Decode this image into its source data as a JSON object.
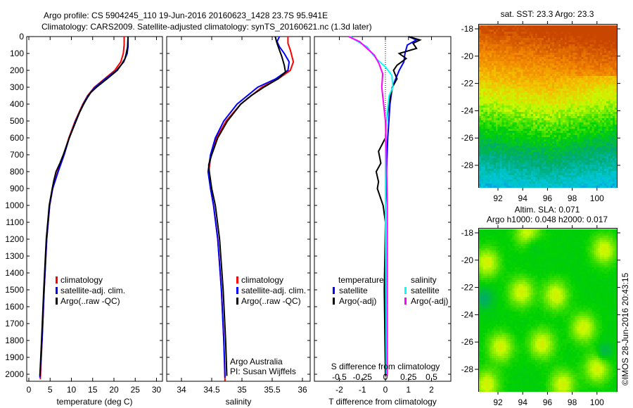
{
  "title_line1": "Argo profile: CS 5904245_110 19-Jun-2016 20160623_1428 23.7S 95.941E",
  "title_line2": "Climatology: CARS2009. Satellite-adjusted climatology: synTS_20160621.nc (1.3d later)",
  "colors": {
    "climatology": "#ff0000",
    "satellite": "#0000ff",
    "argo": "#000000",
    "sal_satellite": "#00ffff",
    "sal_argo": "#ff00ff"
  },
  "chart_data": [
    {
      "type": "line",
      "name": "temperature",
      "xlabel": "temperature (deg C)",
      "ylabel": "depth",
      "xlim": [
        -1,
        31
      ],
      "ylim": [
        2042,
        0
      ],
      "xticks": [
        "0",
        "5",
        "10",
        "15",
        "20",
        "25",
        "30"
      ],
      "yticks": [
        "0",
        "100",
        "200",
        "300",
        "400",
        "500",
        "600",
        "700",
        "800",
        "900",
        "1000",
        "1100",
        "1200",
        "1300",
        "1400",
        "1500",
        "1600",
        "1700",
        "1800",
        "1900",
        "2000"
      ],
      "legend": [
        "climatology",
        "satellite-adj. clim.",
        "Argo(..raw -QC)"
      ],
      "series": [
        {
          "name": "climatology",
          "color": "#ff0000",
          "points": [
            [
              0,
              22.4
            ],
            [
              50,
              22.4
            ],
            [
              100,
              22.2
            ],
            [
              150,
              21.6
            ],
            [
              200,
              20.2
            ],
            [
              250,
              17.8
            ],
            [
              300,
              15.4
            ],
            [
              350,
              13.8
            ],
            [
              400,
              12.7
            ],
            [
              500,
              10.9
            ],
            [
              600,
              9.4
            ],
            [
              700,
              8.2
            ],
            [
              800,
              6.8
            ],
            [
              900,
              5.6
            ],
            [
              1000,
              4.9
            ],
            [
              1200,
              4.2
            ],
            [
              1500,
              3.6
            ],
            [
              1800,
              3.1
            ],
            [
              2030,
              2.7
            ]
          ]
        },
        {
          "name": "satellite-adj. clim.",
          "color": "#0000ff",
          "points": [
            [
              0,
              23.3
            ],
            [
              60,
              23.3
            ],
            [
              100,
              23.1
            ],
            [
              150,
              22.3
            ],
            [
              200,
              20.6
            ],
            [
              250,
              18.0
            ],
            [
              300,
              15.6
            ],
            [
              350,
              13.9
            ],
            [
              400,
              12.8
            ],
            [
              500,
              11.0
            ],
            [
              600,
              9.5
            ],
            [
              700,
              8.3
            ],
            [
              800,
              6.9
            ],
            [
              900,
              5.6
            ],
            [
              1000,
              4.9
            ],
            [
              1200,
              4.2
            ],
            [
              1500,
              3.6
            ],
            [
              1800,
              3.1
            ],
            [
              2020,
              2.6
            ]
          ]
        },
        {
          "name": "Argo(..raw -QC)",
          "color": "#000000",
          "points": [
            [
              0,
              23.3
            ],
            [
              60,
              23.2
            ],
            [
              100,
              22.9
            ],
            [
              130,
              22.6
            ],
            [
              160,
              21.9
            ],
            [
              200,
              20.8
            ],
            [
              250,
              18.4
            ],
            [
              300,
              15.9
            ],
            [
              330,
              14.6
            ],
            [
              360,
              13.8
            ],
            [
              400,
              12.9
            ],
            [
              450,
              11.9
            ],
            [
              500,
              11.1
            ],
            [
              600,
              9.5
            ],
            [
              700,
              8.1
            ],
            [
              750,
              7.3
            ],
            [
              800,
              6.4
            ],
            [
              850,
              5.9
            ],
            [
              900,
              5.5
            ],
            [
              1000,
              4.8
            ],
            [
              1200,
              4.1
            ],
            [
              1500,
              3.5
            ],
            [
              1800,
              3.0
            ],
            [
              2010,
              2.6
            ]
          ]
        }
      ]
    },
    {
      "type": "line",
      "name": "salinity",
      "xlabel": "salinity",
      "xlim": [
        33.6,
        36.05
      ],
      "ylim": [
        2042,
        0
      ],
      "xticks": [
        "34",
        "34.5",
        "35",
        "35.5",
        "36"
      ],
      "legend": [
        "climatology",
        "satellite-adj. clim.",
        "Argo(..raw -QC)"
      ],
      "annotation": [
        "Argo Australia",
        "PI: Susan Wijffels"
      ],
      "series": [
        {
          "name": "climatology",
          "color": "#ff0000",
          "points": [
            [
              0,
              35.76
            ],
            [
              40,
              35.76
            ],
            [
              80,
              35.8
            ],
            [
              150,
              35.85
            ],
            [
              200,
              35.8
            ],
            [
              250,
              35.6
            ],
            [
              300,
              35.33
            ],
            [
              400,
              34.98
            ],
            [
              500,
              34.74
            ],
            [
              600,
              34.58
            ],
            [
              700,
              34.49
            ],
            [
              800,
              34.45
            ],
            [
              900,
              34.48
            ],
            [
              1000,
              34.53
            ],
            [
              1200,
              34.6
            ],
            [
              1500,
              34.66
            ],
            [
              1800,
              34.7
            ],
            [
              2040,
              34.72
            ]
          ]
        },
        {
          "name": "satellite-adj. clim.",
          "color": "#0000ff",
          "points": [
            [
              0,
              35.62
            ],
            [
              30,
              35.58
            ],
            [
              60,
              35.62
            ],
            [
              100,
              35.7
            ],
            [
              150,
              35.78
            ],
            [
              200,
              35.76
            ],
            [
              250,
              35.56
            ],
            [
              300,
              35.26
            ],
            [
              400,
              34.92
            ],
            [
              500,
              34.7
            ],
            [
              600,
              34.56
            ],
            [
              700,
              34.48
            ],
            [
              800,
              34.44
            ],
            [
              900,
              34.48
            ],
            [
              1000,
              34.53
            ],
            [
              1200,
              34.6
            ],
            [
              1500,
              34.66
            ],
            [
              1800,
              34.7
            ],
            [
              2020,
              34.72
            ]
          ]
        },
        {
          "name": "Argo(..raw -QC)",
          "color": "#000000",
          "points": [
            [
              0,
              35.55
            ],
            [
              40,
              35.58
            ],
            [
              80,
              35.62
            ],
            [
              120,
              35.66
            ],
            [
              170,
              35.7
            ],
            [
              210,
              35.72
            ],
            [
              250,
              35.6
            ],
            [
              300,
              35.36
            ],
            [
              350,
              35.15
            ],
            [
              400,
              34.98
            ],
            [
              500,
              34.76
            ],
            [
              600,
              34.6
            ],
            [
              700,
              34.5
            ],
            [
              760,
              34.45
            ],
            [
              800,
              34.46
            ],
            [
              900,
              34.5
            ],
            [
              1000,
              34.56
            ],
            [
              1200,
              34.63
            ],
            [
              1500,
              34.69
            ],
            [
              1800,
              34.73
            ],
            [
              2010,
              34.75
            ]
          ]
        }
      ]
    },
    {
      "type": "line",
      "name": "differences",
      "xlabel": "T difference from climatology",
      "x2label": "S difference from climatology",
      "xlim": [
        -2.0,
        2.85
      ],
      "ylim": [
        2042,
        0
      ],
      "xticks": [
        "-2",
        "-1",
        "0",
        "1",
        "2"
      ],
      "x2ticks": [
        "-0.5",
        "-0.25",
        "0",
        "0.25",
        "0.5"
      ],
      "legend_temperature": {
        "title": "temperature",
        "items": [
          "satellite",
          "Argo(-adj)"
        ]
      },
      "legend_salinity": {
        "title": "salinity",
        "items": [
          "satellite",
          "Argo(-adj)"
        ]
      },
      "series": [
        {
          "name": "T satellite",
          "color": "#0000ff",
          "units": "T",
          "points": [
            [
              0,
              1.0
            ],
            [
              20,
              1.35
            ],
            [
              50,
              0.95
            ],
            [
              100,
              0.85
            ],
            [
              150,
              0.8
            ],
            [
              200,
              0.6
            ],
            [
              250,
              0.45
            ],
            [
              300,
              0.3
            ],
            [
              400,
              0.2
            ],
            [
              600,
              0.1
            ],
            [
              800,
              0.05
            ],
            [
              1000,
              0
            ],
            [
              2000,
              0
            ]
          ]
        },
        {
          "name": "T Argo(-adj)",
          "color": "#000000",
          "units": "T",
          "points": [
            [
              0,
              1.0
            ],
            [
              20,
              1.5
            ],
            [
              40,
              1.2
            ],
            [
              70,
              1.35
            ],
            [
              100,
              0.6
            ],
            [
              130,
              0.9
            ],
            [
              170,
              0.5
            ],
            [
              200,
              0.35
            ],
            [
              250,
              0.5
            ],
            [
              300,
              0.3
            ],
            [
              400,
              0.15
            ],
            [
              500,
              0.05
            ],
            [
              600,
              0.0
            ],
            [
              680,
              -0.3
            ],
            [
              750,
              -0.2
            ],
            [
              800,
              -0.4
            ],
            [
              860,
              -0.3
            ],
            [
              900,
              -0.35
            ],
            [
              1000,
              -0.1
            ],
            [
              1100,
              0
            ],
            [
              1500,
              -0.05
            ],
            [
              2010,
              0
            ]
          ]
        },
        {
          "name": "S satellite",
          "color": "#00ffff",
          "units": "S",
          "points": [
            [
              0,
              -0.38
            ],
            [
              30,
              -0.3
            ],
            [
              60,
              -0.2
            ],
            [
              90,
              -0.16
            ],
            [
              130,
              -0.1
            ],
            [
              180,
              0.0
            ],
            [
              230,
              0.07
            ],
            [
              300,
              0.08
            ],
            [
              350,
              0.04
            ],
            [
              450,
              0.02
            ],
            [
              600,
              0.0
            ],
            [
              1000,
              0.0
            ],
            [
              2000,
              0.01
            ]
          ]
        },
        {
          "name": "S Argo(-adj)",
          "color": "#ff00ff",
          "units": "S",
          "points": [
            [
              0,
              -0.4
            ],
            [
              30,
              -0.28
            ],
            [
              70,
              -0.2
            ],
            [
              110,
              -0.12
            ],
            [
              160,
              -0.07
            ],
            [
              220,
              -0.03
            ],
            [
              300,
              -0.04
            ],
            [
              400,
              -0.02
            ],
            [
              500,
              0.0
            ],
            [
              700,
              0.01
            ],
            [
              1000,
              0.02
            ],
            [
              1500,
              0.02
            ],
            [
              2010,
              0.02
            ]
          ]
        }
      ]
    },
    {
      "type": "heatmap",
      "name": "satellite-sst-map",
      "title": "sat. SST: 23.3 Argo: 23.3",
      "xticks": [
        "92",
        "94",
        "96",
        "98",
        "100"
      ],
      "yticks": [
        "-18",
        "-20",
        "-22",
        "-24",
        "-26",
        "-28"
      ]
    },
    {
      "type": "heatmap",
      "name": "altimetry-sla-map",
      "title_line1": "Altim. SLA: 0.071",
      "title_line2": "Argo h1000: 0.048 h2000: 0.017",
      "xticks": [
        "92",
        "94",
        "96",
        "98",
        "100"
      ],
      "yticks": [
        "-18",
        "-20",
        "-22",
        "-24",
        "-26",
        "-28"
      ]
    }
  ],
  "credit": "©IMOS 28-Jun-2016 20:43:15"
}
